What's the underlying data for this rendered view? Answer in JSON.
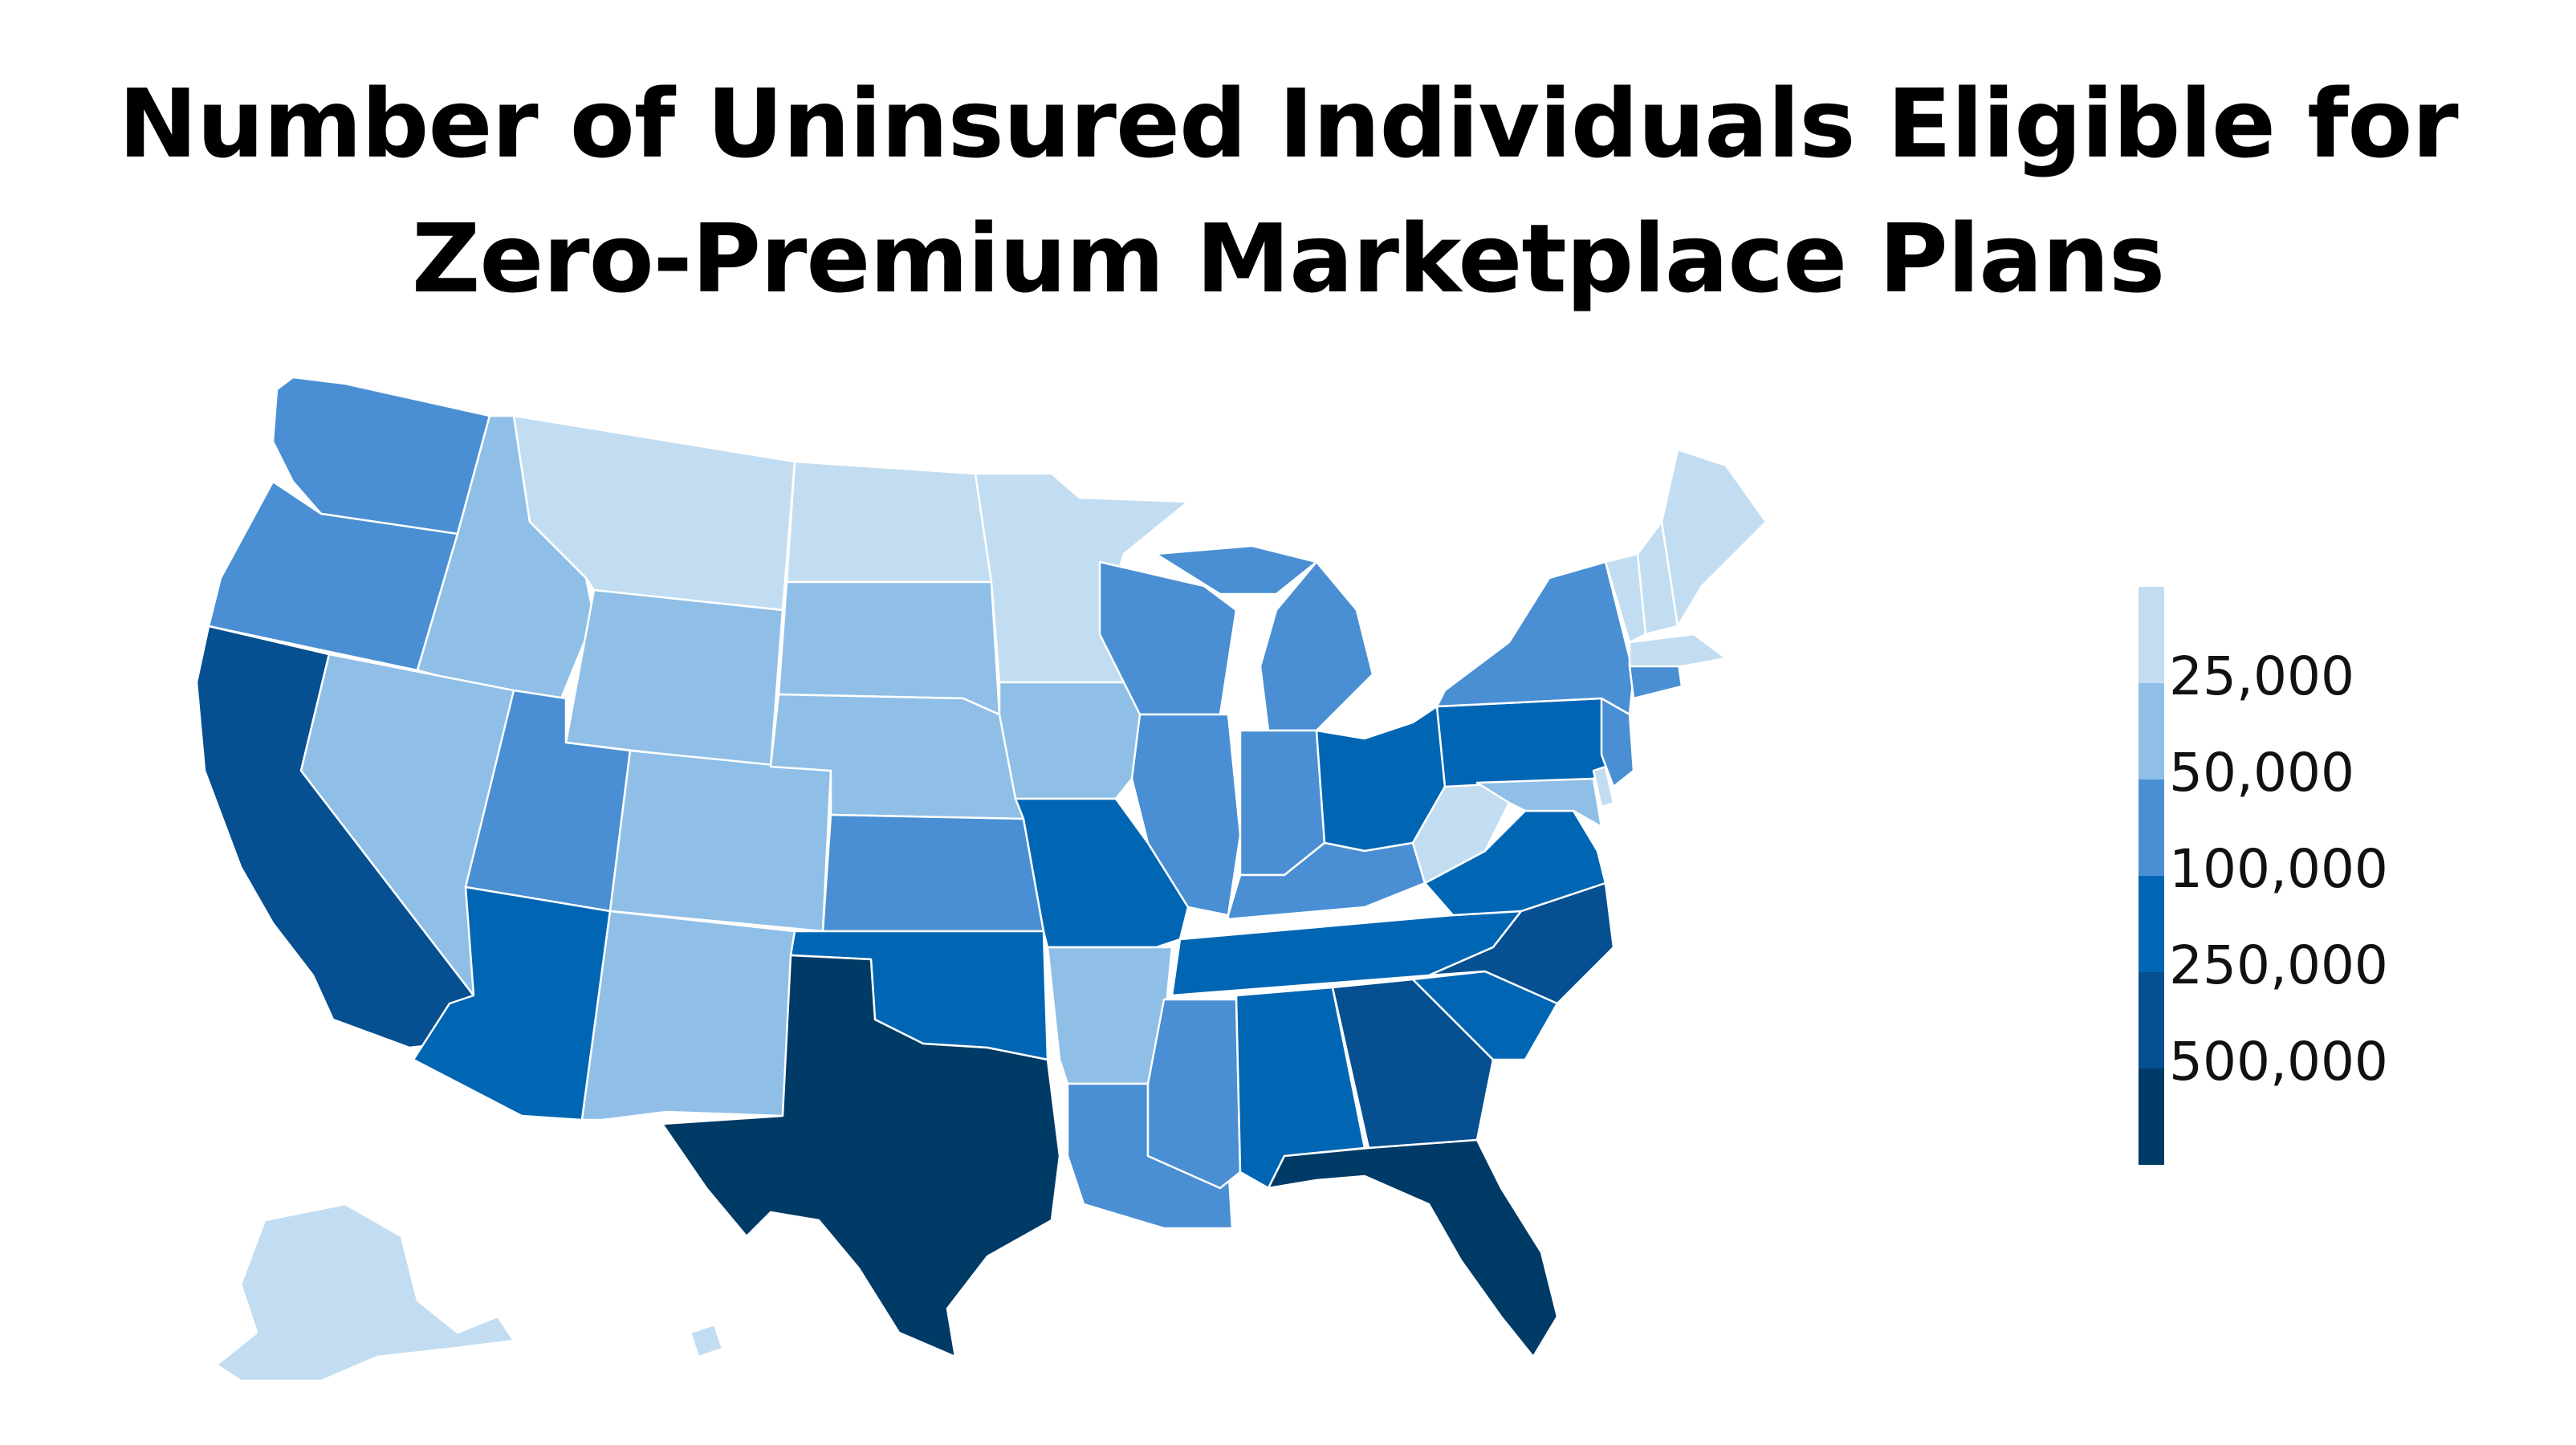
{
  "title": {
    "line1": "Number of Uninsured Individuals Eligible for",
    "line2": "Zero-Premium Marketplace Plans"
  },
  "colors": {
    "c1": "#c2ddf1",
    "c2": "#8fbfe6",
    "c3": "#4a8fd3",
    "c4": "#0066b4",
    "c5": "#064f90",
    "c6": "#003a66"
  },
  "legend": {
    "labels": [
      "25,000",
      "50,000",
      "100,000",
      "250,000",
      "500,000"
    ]
  }
}
